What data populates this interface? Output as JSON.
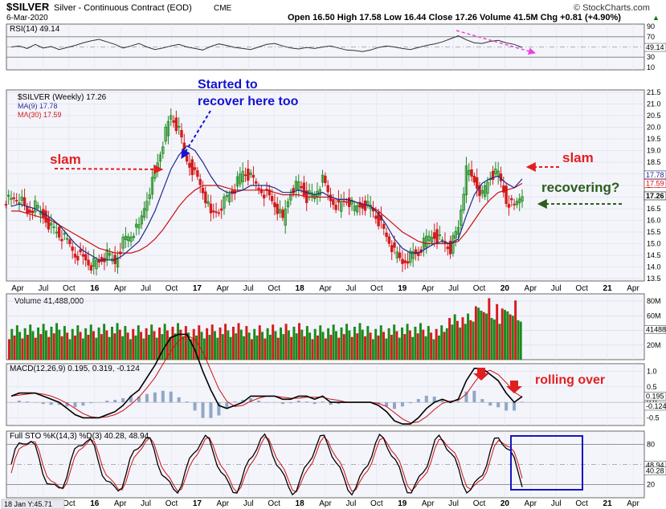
{
  "header": {
    "symbol": "$SILVER",
    "name": "Silver - Continuous Contract (EOD)",
    "exchange": "CME",
    "date": "6-Mar-2020",
    "ohlc": "Open 16.50  High 17.58  Low 16.44  Close 17.26  Volume 41.5M  Chg +0.81 (+4.90%)",
    "ohlc_arrow": "▲",
    "watermark": "© StockCharts.com"
  },
  "rsi": {
    "label": "RSI(14) 49.14",
    "ticks": [
      "90",
      "70",
      "50",
      "30",
      "10"
    ],
    "current": "49.14",
    "levels": [
      30,
      70
    ],
    "values": [
      50,
      52,
      47,
      55,
      48,
      51,
      45,
      49,
      53,
      58,
      62,
      65,
      60,
      55,
      48,
      52,
      57,
      50,
      45,
      48,
      52,
      55,
      50,
      47,
      44,
      51,
      56,
      53,
      49,
      47,
      45,
      50,
      55,
      57,
      52,
      48,
      46,
      49,
      47,
      50,
      52,
      48,
      44,
      43,
      41,
      44,
      49,
      52,
      50,
      47,
      45,
      49,
      53,
      56,
      60,
      66,
      72,
      64,
      58,
      57,
      61,
      63,
      58,
      55,
      49
    ]
  },
  "price": {
    "label": "$SILVER (Weekly) 17.26",
    "ma9_label": "MA(9) 17.78",
    "ma30_label": "MA(30) 17.59",
    "ma9_color": "#1f2a8c",
    "ma30_color": "#cc1111",
    "current": "17.26",
    "ma9_value": "17.78",
    "ma30_value": "17.59",
    "y_ticks": [
      "21.5",
      "21.0",
      "20.5",
      "20.0",
      "19.5",
      "19.0",
      "18.5",
      "18.0",
      "17.5",
      "17.0",
      "16.5",
      "16.0",
      "15.5",
      "15.0",
      "14.5",
      "14.0",
      "13.5"
    ]
  },
  "volume": {
    "label": "Volume 41,488,000",
    "y_ticks": [
      "80M",
      "60M",
      "40M",
      "20M"
    ],
    "current": "41488"
  },
  "macd": {
    "label": "MACD(12,26,9) 0.195, 0.319, -0.124",
    "y_ticks": [
      "1.0",
      "0.5",
      "0.0",
      "-0.5"
    ],
    "current_1": "0.195",
    "current_2": "-0.124"
  },
  "sto": {
    "label": "Full STO %K(14,3) %D(3) 40.28, 48.94",
    "y_ticks": [
      "80",
      "50",
      "20"
    ],
    "current_1": "48.94",
    "current_2": "40.28"
  },
  "x_axis": {
    "labels": [
      "Apr",
      "Jul",
      "Oct",
      "16",
      "Apr",
      "Jul",
      "Oct",
      "17",
      "Apr",
      "Jul",
      "Oct",
      "18",
      "Apr",
      "Jul",
      "Oct",
      "19",
      "Apr",
      "Jul",
      "Oct",
      "20",
      "Apr",
      "Jul",
      "Oct",
      "21",
      "Apr"
    ]
  },
  "footer": {
    "cursor": "18 Jan Y:45.71"
  },
  "annotations": {
    "slam_left": "slam",
    "recover": "Started to\nrecover here too",
    "recover_line1": "Started to",
    "recover_line2": "recover here too",
    "slam_right": "slam",
    "recovering": "recovering?",
    "rolling_over": "rolling over"
  },
  "chart_data": {
    "type": "candlestick",
    "title": "$SILVER Silver - Continuous Contract (EOD)",
    "period": "Weekly",
    "last_close": 17.26,
    "ylim": [
      13.5,
      21.5
    ],
    "ohlc_last": {
      "open": 16.5,
      "high": 17.58,
      "low": 16.44,
      "close": 17.26,
      "volume": "41.5M",
      "change": "+0.81 (+4.90%)"
    },
    "close_approx": [
      16.9,
      17.0,
      16.3,
      16.6,
      16.2,
      15.7,
      15.4,
      15.1,
      14.6,
      14.4,
      14.1,
      14.2,
      14.5,
      14.2,
      15.1,
      15.4,
      15.7,
      17.0,
      18.0,
      19.4,
      20.5,
      19.8,
      18.6,
      18.0,
      17.3,
      16.2,
      16.5,
      17.0,
      17.4,
      18.1,
      17.8,
      17.4,
      17.1,
      16.7,
      16.0,
      17.3,
      17.6,
      17.0,
      17.1,
      17.7,
      16.9,
      16.6,
      16.9,
      16.5,
      16.7,
      16.6,
      16.0,
      15.3,
      14.6,
      14.2,
      14.5,
      14.6,
      15.2,
      15.4,
      15.1,
      14.8,
      15.7,
      18.1,
      17.7,
      17.1,
      17.9,
      18.0,
      16.9,
      16.6,
      17.26
    ],
    "ma9_approx": [
      16.6,
      16.7,
      16.6,
      16.5,
      16.3,
      16.1,
      15.8,
      15.4,
      15.0,
      14.7,
      14.5,
      14.3,
      14.3,
      14.3,
      14.5,
      14.8,
      15.1,
      15.7,
      16.4,
      17.3,
      18.2,
      18.8,
      19.2,
      19.0,
      18.5,
      17.9,
      17.4,
      17.2,
      17.2,
      17.3,
      17.5,
      17.5,
      17.5,
      17.4,
      17.2,
      17.2,
      17.3,
      17.2,
      17.1,
      17.2,
      17.0,
      16.9,
      16.9,
      16.8,
      16.7,
      16.6,
      16.3,
      15.8,
      15.2,
      14.8,
      14.6,
      14.6,
      14.8,
      15.0,
      15.1,
      15.0,
      15.2,
      16.2,
      17.1,
      17.6,
      17.8,
      17.9,
      17.6,
      17.4,
      17.78
    ],
    "ma30_approx": [
      16.4,
      16.4,
      16.3,
      16.2,
      16.1,
      16.0,
      15.8,
      15.6,
      15.4,
      15.2,
      15.0,
      14.8,
      14.7,
      14.6,
      14.6,
      14.6,
      14.7,
      14.9,
      15.2,
      15.6,
      16.1,
      16.6,
      17.0,
      17.3,
      17.5,
      17.5,
      17.5,
      17.4,
      17.3,
      17.3,
      17.3,
      17.3,
      17.3,
      17.2,
      17.1,
      17.1,
      17.1,
      17.0,
      17.0,
      17.0,
      17.0,
      16.9,
      16.9,
      16.8,
      16.7,
      16.6,
      16.4,
      16.1,
      15.8,
      15.5,
      15.3,
      15.1,
      15.0,
      15.0,
      15.0,
      15.0,
      15.1,
      15.5,
      16.0,
      16.5,
      16.9,
      17.2,
      17.3,
      17.4,
      17.59
    ]
  }
}
